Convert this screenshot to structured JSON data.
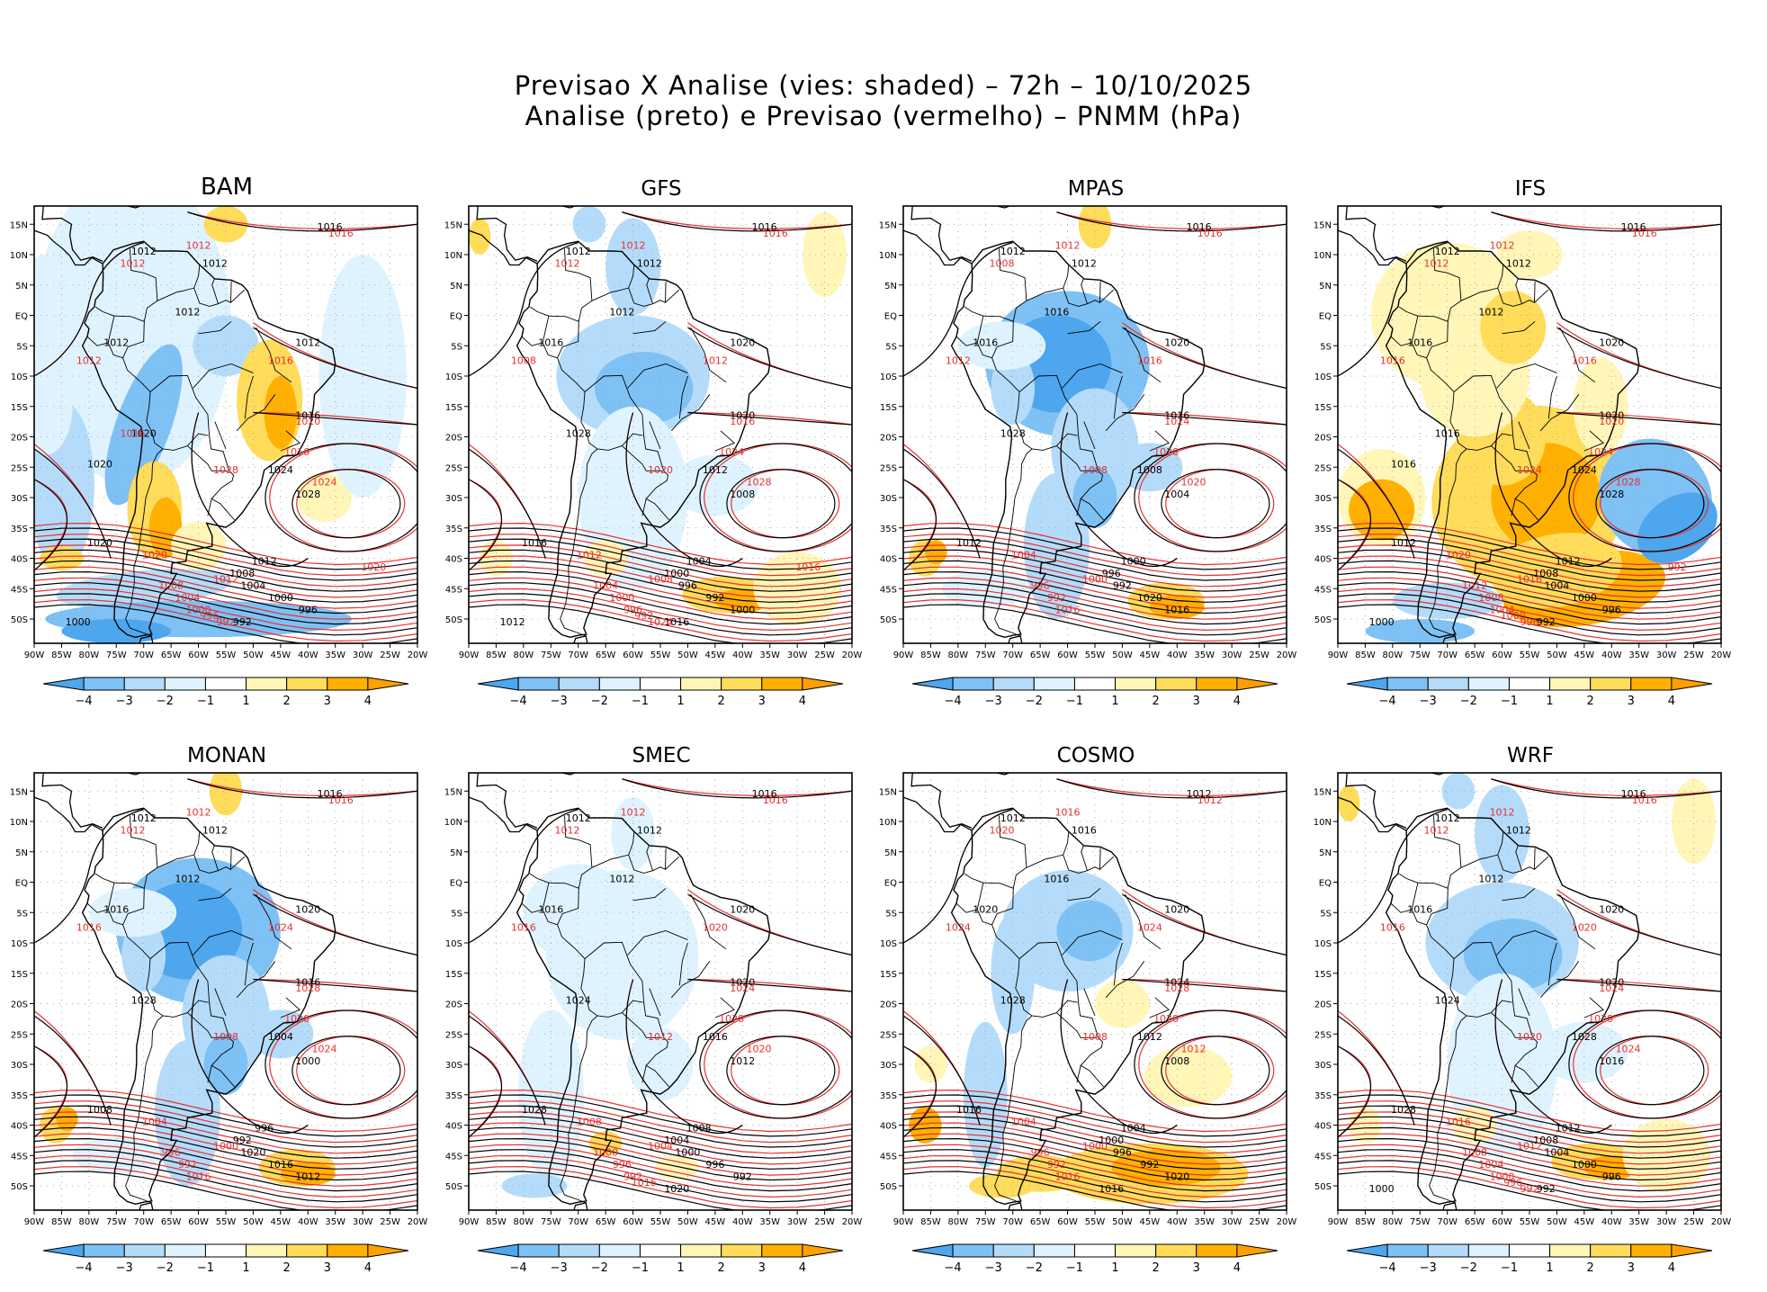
{
  "header": {
    "title_line1": "Previsao X Analise (vies: shaded) – 72h – 10/10/2025",
    "title_line2": "Analise (preto) e Previsao (vermelho) – PNMM (hPa)"
  },
  "axes": {
    "lat_labels": [
      "15N",
      "10N",
      "5N",
      "EQ",
      "5S",
      "10S",
      "15S",
      "20S",
      "25S",
      "30S",
      "35S",
      "40S",
      "45S",
      "50S"
    ],
    "lon_labels": [
      "90W",
      "85W",
      "80W",
      "75W",
      "70W",
      "65W",
      "60W",
      "55W",
      "50W",
      "45W",
      "40W",
      "35W",
      "30W",
      "25W",
      "20W"
    ]
  },
  "colorbar": {
    "ticks": [
      "−4",
      "−3",
      "−2",
      "−1",
      "1",
      "2",
      "3",
      "4"
    ],
    "colors": [
      "#4da6ee",
      "#7ec1f5",
      "#b4dcfa",
      "#dff3ff",
      "#ffffff",
      "#fff6b8",
      "#ffdc5a",
      "#ffb000",
      "#ffa000"
    ]
  },
  "colors": {
    "analysis": "#000000",
    "forecast": "#e83030",
    "warm": "#ffc830",
    "cool": "#6eb6f0",
    "warm_strong": "#ffa500",
    "cool_strong": "#3e98e6"
  },
  "panels": [
    {
      "name": "BAM",
      "bias": "mixed_warm",
      "black_labels": [
        "1016",
        "1012",
        "1012",
        "1012",
        "1012",
        "1012",
        "1016",
        "1020",
        "1020",
        "1024",
        "1028",
        "1012",
        "1008",
        "1004",
        "1000",
        "996",
        "992",
        "1000",
        "1020"
      ],
      "red_labels": [
        "1016",
        "1012",
        "1012",
        "1012",
        "1016",
        "1020",
        "1016",
        "1024",
        "1028",
        "1020",
        "1012",
        "1008",
        "1004",
        "1000",
        "996",
        "992",
        "1020",
        "1016"
      ]
    },
    {
      "name": "GFS",
      "bias": "mixed_cool",
      "black_labels": [
        "1016",
        "1012",
        "1012",
        "1012",
        "1016",
        "1020",
        "1020",
        "1028",
        "1016",
        "1012",
        "1008",
        "1004",
        "1000",
        "996",
        "992",
        "1000",
        "1016",
        "1012"
      ],
      "red_labels": [
        "1016",
        "1012",
        "1012",
        "1008",
        "1012",
        "1016",
        "1024",
        "1028",
        "1020",
        "1012",
        "1008",
        "1004",
        "1000",
        "996",
        "992",
        "1024",
        "1016"
      ]
    },
    {
      "name": "MPAS",
      "bias": "cool",
      "black_labels": [
        "1016",
        "1012",
        "1012",
        "1016",
        "1016",
        "1020",
        "1016",
        "1028",
        "1012",
        "1008",
        "1004",
        "1000",
        "996",
        "992",
        "1020",
        "1016"
      ],
      "red_labels": [
        "1016",
        "1012",
        "1008",
        "1012",
        "1016",
        "1024",
        "1028",
        "1020",
        "1008",
        "1004",
        "1000",
        "996",
        "992",
        "1016"
      ]
    },
    {
      "name": "IFS",
      "bias": "warm",
      "black_labels": [
        "1016",
        "1012",
        "1012",
        "1012",
        "1016",
        "1020",
        "1020",
        "1016",
        "1012",
        "1024",
        "1028",
        "1012",
        "1008",
        "1004",
        "1000",
        "996",
        "992",
        "1000",
        "1016"
      ],
      "red_labels": [
        "1016",
        "1012",
        "1012",
        "1016",
        "1016",
        "1020",
        "1024",
        "1028",
        "1024",
        "1020",
        "1016",
        "1012",
        "1008",
        "1004",
        "1000",
        "996",
        "992"
      ]
    },
    {
      "name": "MONAN",
      "bias": "cool",
      "black_labels": [
        "1016",
        "1012",
        "1012",
        "1012",
        "1016",
        "1020",
        "1016",
        "1028",
        "1008",
        "1004",
        "1000",
        "996",
        "992",
        "1020",
        "1016",
        "1012"
      ],
      "red_labels": [
        "1016",
        "1012",
        "1012",
        "1016",
        "1024",
        "1028",
        "1020",
        "1024",
        "1008",
        "1004",
        "1000",
        "996",
        "992",
        "1016"
      ]
    },
    {
      "name": "SMEC",
      "bias": "neutral",
      "black_labels": [
        "1016",
        "1012",
        "1012",
        "1012",
        "1016",
        "1020",
        "1020",
        "1024",
        "1028",
        "1016",
        "1012",
        "1008",
        "1004",
        "1000",
        "996",
        "992",
        "1020"
      ],
      "red_labels": [
        "1016",
        "1012",
        "1012",
        "1016",
        "1020",
        "1024",
        "1028",
        "1020",
        "1012",
        "1008",
        "1004",
        "1000",
        "996",
        "992",
        "1016"
      ]
    },
    {
      "name": "COSMO",
      "bias": "mixed_warm_south",
      "black_labels": [
        "1012",
        "1012",
        "1016",
        "1016",
        "1020",
        "1020",
        "1024",
        "1028",
        "1016",
        "1012",
        "1008",
        "1004",
        "1000",
        "996",
        "992",
        "1020",
        "1016"
      ],
      "red_labels": [
        "1012",
        "1016",
        "1020",
        "1024",
        "1024",
        "1028",
        "1020",
        "1012",
        "1008",
        "1004",
        "1000",
        "996",
        "992",
        "1016"
      ]
    },
    {
      "name": "WRF",
      "bias": "mixed_cool",
      "black_labels": [
        "1016",
        "1012",
        "1012",
        "1012",
        "1016",
        "1020",
        "1020",
        "1024",
        "1028",
        "1028",
        "1016",
        "1012",
        "1008",
        "1004",
        "1000",
        "996",
        "992",
        "1000"
      ],
      "red_labels": [
        "1016",
        "1012",
        "1012",
        "1016",
        "1020",
        "1024",
        "1028",
        "1024",
        "1020",
        "1016",
        "1012",
        "1008",
        "1004",
        "1000",
        "996",
        "992"
      ]
    }
  ]
}
